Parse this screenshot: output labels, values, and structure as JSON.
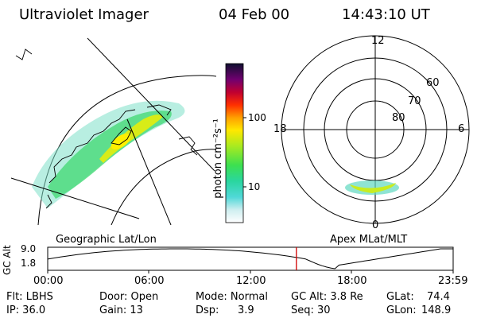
{
  "header": {
    "instrument": "Ultraviolet Imager",
    "date": "04 Feb 00",
    "time": "14:43:10 UT"
  },
  "colorbar": {
    "unit_label": "photon cm⁻²s⁻¹",
    "ticks": [
      "100",
      "10"
    ]
  },
  "polar_plot": {
    "mlt_labels": [
      "12",
      "18",
      "6",
      "0"
    ],
    "lat_labels": [
      "60",
      "70",
      "80"
    ]
  },
  "panel_labels": {
    "left": "Geographic Lat/Lon",
    "right": "Apex MLat/MLT"
  },
  "timeline": {
    "ylabel": "GC Alt",
    "y_ticks": [
      "9.0",
      "1.8"
    ],
    "x_ticks": [
      "00:00",
      "06:00",
      "12:00",
      "18:00",
      "23:59"
    ],
    "current_time_hours": 14.72
  },
  "info": {
    "row1": {
      "flt": "Flt: LBHS",
      "door": "Door: Open",
      "mode": "Mode: Normal",
      "gcalt": "GC Alt: 3.8 Re",
      "glat_label": "GLat:",
      "glat_val": "74.4"
    },
    "row2": {
      "ip": "IP: 36.0",
      "gain": "Gain: 13",
      "dsp_label": "Dsp:",
      "dsp_val": "3.9",
      "seq": "Seq: 30",
      "glon_label": "GLon:",
      "glon_val": "148.9"
    }
  }
}
